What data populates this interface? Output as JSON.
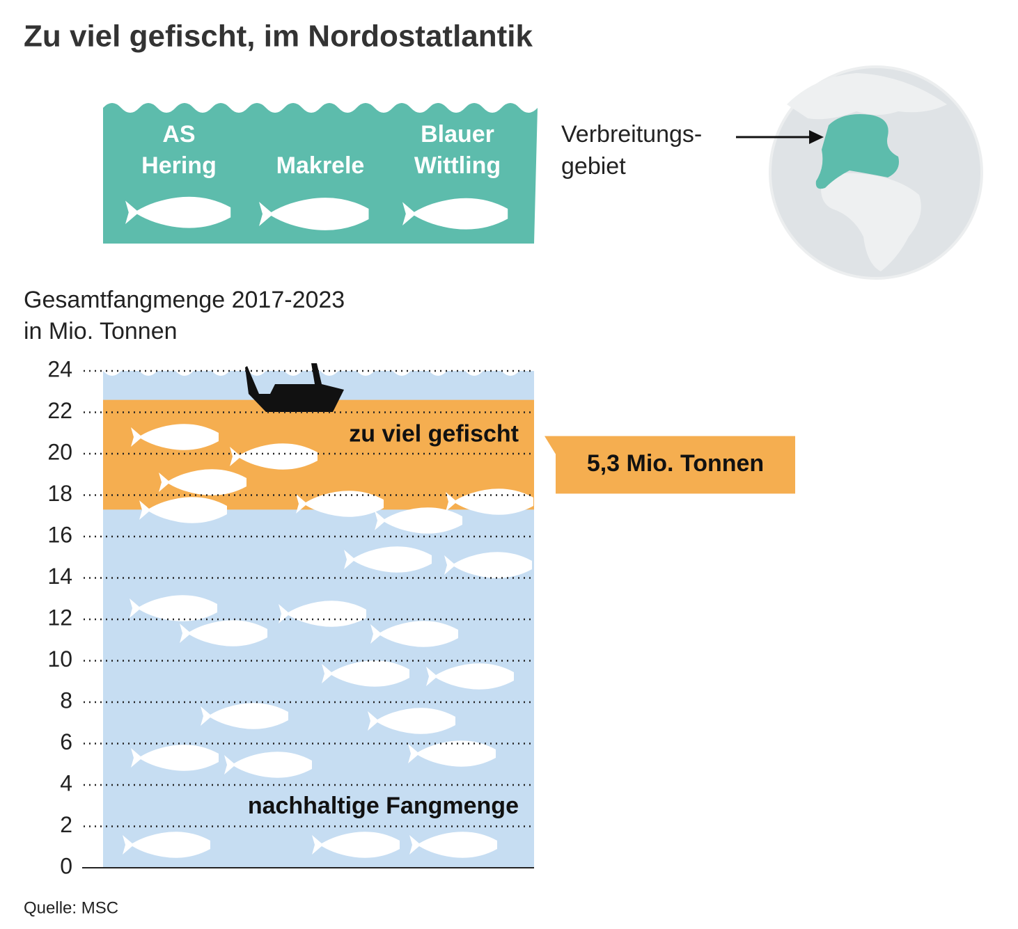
{
  "title": "Zu viel gefischt, im Nordostatlantik",
  "species": [
    [
      "AS",
      "Hering"
    ],
    [
      "Makrele"
    ],
    [
      "Blauer",
      "Wittling"
    ]
  ],
  "map_label": [
    "Verbreitungs-",
    "gebiet"
  ],
  "source": "Quelle: MSC",
  "chart_data": {
    "type": "stacked_bar",
    "y_label": [
      "Gesamtfangmenge 2017-2023",
      "in Mio. Tonnen"
    ],
    "categories": [
      null
    ],
    "series": [
      {
        "name": "nachhaltige Fangmenge",
        "color": "#c6ddf2",
        "values": [
          17.3
        ]
      },
      {
        "name": "zu viel gefischt",
        "color": "#f5ae50",
        "values": [
          5.3
        ],
        "value_labels": [
          "5,3 Mio. Tonnen"
        ]
      }
    ],
    "ylim": [
      0,
      24
    ],
    "yticks": [
      0,
      2,
      4,
      6,
      8,
      10,
      12,
      14,
      16,
      18,
      20,
      22,
      24
    ],
    "grid": true
  }
}
